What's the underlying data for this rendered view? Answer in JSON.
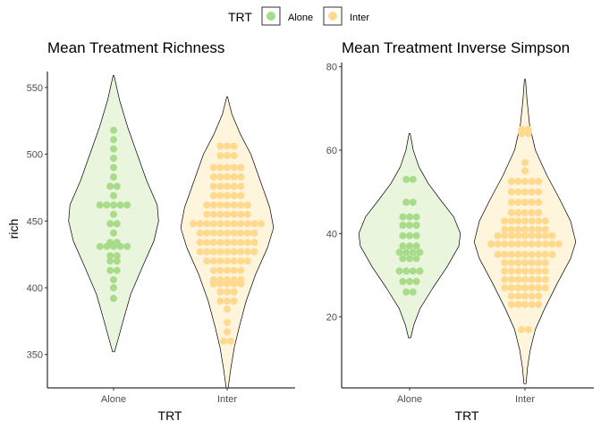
{
  "legend": {
    "title": "TRT",
    "items": [
      {
        "label": "Alone",
        "color": "#a8dc8a",
        "fill": "#e9f5dc"
      },
      {
        "label": "Inter",
        "color": "#ffd98e",
        "fill": "#fff5dc"
      }
    ]
  },
  "chart_data": [
    {
      "type": "violin-dotplot",
      "title": "Mean Treatment Richness",
      "xlabel": "TRT",
      "ylabel": "rich",
      "categories": [
        "Alone",
        "Inter"
      ],
      "ylim": [
        325,
        562
      ],
      "yticks": [
        350,
        400,
        450,
        500,
        550
      ],
      "violins": [
        {
          "group": "Alone",
          "bottom": 352,
          "top": 559,
          "profile": [
            [
              352,
              0.02
            ],
            [
              362,
              0.1
            ],
            [
              375,
              0.2
            ],
            [
              395,
              0.36
            ],
            [
              415,
              0.6
            ],
            [
              435,
              0.85
            ],
            [
              450,
              0.95
            ],
            [
              462,
              0.92
            ],
            [
              480,
              0.7
            ],
            [
              500,
              0.5
            ],
            [
              520,
              0.3
            ],
            [
              540,
              0.13
            ],
            [
              559,
              0.01
            ]
          ],
          "dots": [
            [
              518,
              1
            ],
            [
              511,
              1
            ],
            [
              504,
              1
            ],
            [
              497,
              1
            ],
            [
              490,
              1
            ],
            [
              483,
              1
            ],
            [
              476,
              2
            ],
            [
              469,
              1
            ],
            [
              462,
              5
            ],
            [
              455,
              1
            ],
            [
              448,
              2
            ],
            [
              441,
              1
            ],
            [
              434,
              2
            ],
            [
              431,
              5
            ],
            [
              424,
              2
            ],
            [
              420,
              2
            ],
            [
              413,
              2
            ],
            [
              406,
              1
            ],
            [
              400,
              1
            ],
            [
              392,
              1
            ]
          ]
        },
        {
          "group": "Inter",
          "bottom": 325,
          "top": 543,
          "profile": [
            [
              325,
              0.02
            ],
            [
              340,
              0.08
            ],
            [
              355,
              0.15
            ],
            [
              370,
              0.25
            ],
            [
              390,
              0.4
            ],
            [
              410,
              0.6
            ],
            [
              430,
              0.85
            ],
            [
              445,
              0.98
            ],
            [
              460,
              0.9
            ],
            [
              480,
              0.7
            ],
            [
              500,
              0.5
            ],
            [
              515,
              0.28
            ],
            [
              530,
              0.1
            ],
            [
              543,
              0.01
            ]
          ],
          "dots": [
            [
              506,
              3
            ],
            [
              499,
              3
            ],
            [
              490,
              5
            ],
            [
              483,
              5
            ],
            [
              476,
              5
            ],
            [
              469,
              5
            ],
            [
              462,
              7
            ],
            [
              455,
              7
            ],
            [
              448,
              11
            ],
            [
              441,
              9
            ],
            [
              434,
              9
            ],
            [
              427,
              9
            ],
            [
              420,
              7
            ],
            [
              413,
              5
            ],
            [
              406,
              5
            ],
            [
              403,
              5
            ],
            [
              397,
              3
            ],
            [
              390,
              3
            ],
            [
              384,
              1
            ],
            [
              374,
              1
            ],
            [
              367,
              1
            ],
            [
              360,
              2
            ]
          ]
        }
      ]
    },
    {
      "type": "violin-dotplot",
      "title": "Mean Treatment Inverse Simpson",
      "xlabel": "TRT",
      "ylabel": "",
      "categories": [
        "Alone",
        "Inter"
      ],
      "ylim": [
        3,
        81
      ],
      "yticks": [
        20,
        40,
        60,
        80
      ],
      "violins": [
        {
          "group": "Alone",
          "bottom": 15,
          "top": 64,
          "profile": [
            [
              15,
              0.02
            ],
            [
              18,
              0.08
            ],
            [
              22,
              0.2
            ],
            [
              27,
              0.45
            ],
            [
              32,
              0.72
            ],
            [
              37,
              0.95
            ],
            [
              40,
              0.98
            ],
            [
              44,
              0.85
            ],
            [
              48,
              0.6
            ],
            [
              52,
              0.36
            ],
            [
              56,
              0.18
            ],
            [
              60,
              0.07
            ],
            [
              64,
              0.01
            ]
          ],
          "dots": [
            [
              53,
              2
            ],
            [
              47.5,
              2
            ],
            [
              44,
              3
            ],
            [
              42,
              3
            ],
            [
              39.5,
              3
            ],
            [
              37,
              3
            ],
            [
              35.5,
              4
            ],
            [
              34,
              3
            ],
            [
              31,
              4
            ],
            [
              28.5,
              3
            ],
            [
              26,
              2
            ]
          ]
        },
        {
          "group": "Inter",
          "bottom": 4,
          "top": 77,
          "profile": [
            [
              4,
              0.02
            ],
            [
              8,
              0.05
            ],
            [
              12,
              0.1
            ],
            [
              17,
              0.2
            ],
            [
              22,
              0.38
            ],
            [
              28,
              0.62
            ],
            [
              34,
              0.88
            ],
            [
              38,
              0.98
            ],
            [
              43,
              0.88
            ],
            [
              48,
              0.68
            ],
            [
              54,
              0.42
            ],
            [
              60,
              0.2
            ],
            [
              66,
              0.09
            ],
            [
              72,
              0.04
            ],
            [
              77,
              0.01
            ]
          ],
          "dots": [
            [
              65,
              2
            ],
            [
              64,
              2
            ],
            [
              57,
              1
            ],
            [
              55,
              1
            ],
            [
              52.5,
              5
            ],
            [
              50,
              5
            ],
            [
              47.5,
              5
            ],
            [
              45,
              5
            ],
            [
              43,
              7
            ],
            [
              41,
              7
            ],
            [
              39.5,
              9
            ],
            [
              37.5,
              11
            ],
            [
              35,
              9
            ],
            [
              33,
              7
            ],
            [
              31,
              7
            ],
            [
              29,
              7
            ],
            [
              27,
              7
            ],
            [
              25,
              5
            ],
            [
              23,
              5
            ],
            [
              17,
              2
            ]
          ]
        }
      ]
    }
  ]
}
